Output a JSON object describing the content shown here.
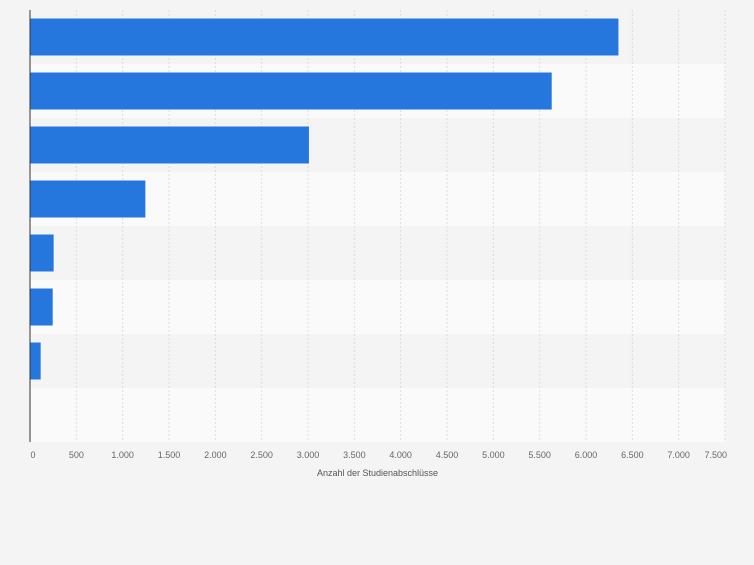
{
  "chart_data": {
    "type": "bar",
    "orientation": "horizontal",
    "categories": [
      "",
      "",
      "",
      "",
      "",
      "",
      "",
      ""
    ],
    "values": [
      6350,
      5630,
      3010,
      1245,
      255,
      245,
      115,
      0
    ],
    "xlabel": "Anzahl der Studienabschlüsse",
    "ylabel": "",
    "xlim": [
      0,
      7500
    ],
    "xticks": [
      0,
      500,
      1000,
      1500,
      2000,
      2500,
      3000,
      3500,
      4000,
      4500,
      5000,
      5500,
      6000,
      6500,
      7000,
      7500
    ],
    "xtick_labels": [
      "0",
      "500",
      "1.000",
      "1.500",
      "2.000",
      "2.500",
      "3.000",
      "3.500",
      "4.000",
      "4.500",
      "5.000",
      "5.500",
      "6.000",
      "6.500",
      "7.000",
      "7.500"
    ],
    "grid": true,
    "bar_color": "#2677dd",
    "band_colors": [
      "#f4f4f4",
      "#fafafa"
    ],
    "gridline_color": "#dddddd"
  }
}
